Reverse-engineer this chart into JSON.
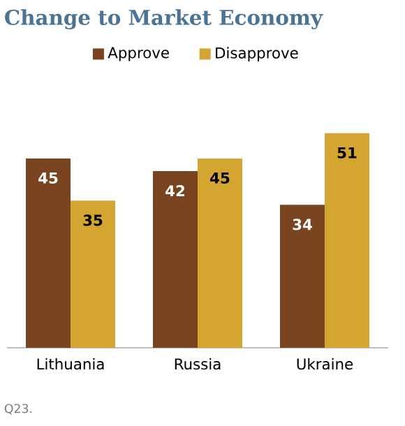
{
  "chart_data": {
    "type": "bar",
    "title": "Change to Market Economy",
    "categories": [
      "Lithuania",
      "Russia",
      "Ukraine"
    ],
    "series": [
      {
        "name": "Approve",
        "color": "#7b4420",
        "values": [
          45,
          42,
          34
        ]
      },
      {
        "name": "Disapprove",
        "color": "#d4a531",
        "values": [
          35,
          45,
          51
        ]
      }
    ],
    "data_labels": true,
    "legend": "top",
    "annotations": [
      "Q23."
    ]
  }
}
